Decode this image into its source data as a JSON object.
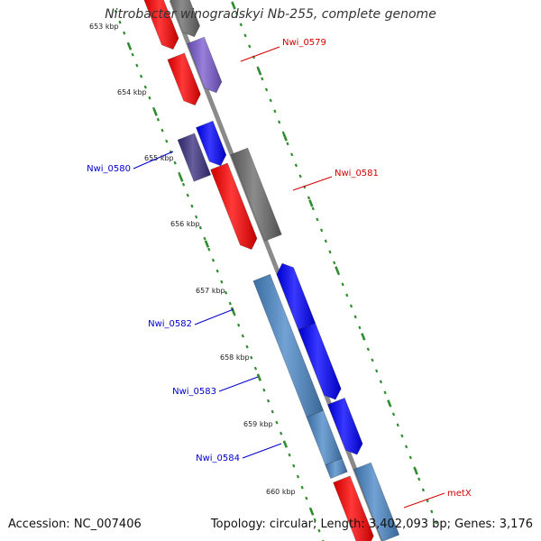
{
  "title": "Nitrobacter winogradskyi Nb-255, complete genome",
  "footer": {
    "accession": "Accession: NC_007406",
    "summary": "Topology: circular; Length: 3,402,093 bp; Genes: 3,176"
  },
  "colors": {
    "backbone": "#8a8a8a",
    "tick": "#2e8b2e",
    "forward_label": "#d40000",
    "reverse_label": "#0000cc"
  },
  "scale_labels": [
    "653 kbp",
    "654 kbp",
    "655 kbp",
    "656 kbp",
    "657 kbp",
    "658 kbp",
    "659 kbp",
    "660 kbp"
  ],
  "features": [
    {
      "label": "",
      "track": "forward-cds",
      "color": "#ff0000"
    },
    {
      "label": "",
      "track": "forward-gene",
      "color": "#6b6b6b"
    },
    {
      "label": "Nwi_0579",
      "track": "forward-cds",
      "color": "#ff0000"
    },
    {
      "label": "",
      "track": "forward-gene",
      "color": "#7a5cd1"
    },
    {
      "label": "Nwi_0580",
      "track": "reverse-cds",
      "color": "#0000ff"
    },
    {
      "label": "",
      "track": "reverse-gene",
      "color": "#3b3080"
    },
    {
      "label": "Nwi_0581",
      "track": "forward-cds",
      "color": "#ff0000"
    },
    {
      "label": "",
      "track": "forward-gene",
      "color": "#6b6b6b"
    },
    {
      "label": "Nwi_0582",
      "track": "reverse-cds",
      "color": "#0000ff"
    },
    {
      "label": "",
      "track": "reverse-gene",
      "color": "#4a88c8"
    },
    {
      "label": "Nwi_0583",
      "track": "reverse-cds",
      "color": "#0000ff"
    },
    {
      "label": "",
      "track": "reverse-gene",
      "color": "#4a88c8"
    },
    {
      "label": "Nwi_0584",
      "track": "reverse-cds",
      "color": "#0000ff"
    },
    {
      "label": "",
      "track": "reverse-gene",
      "color": "#4a88c8"
    },
    {
      "label": "metX",
      "track": "forward-cds",
      "color": "#ff0000"
    },
    {
      "label": "",
      "track": "forward-gene",
      "color": "#4a88c8"
    }
  ]
}
